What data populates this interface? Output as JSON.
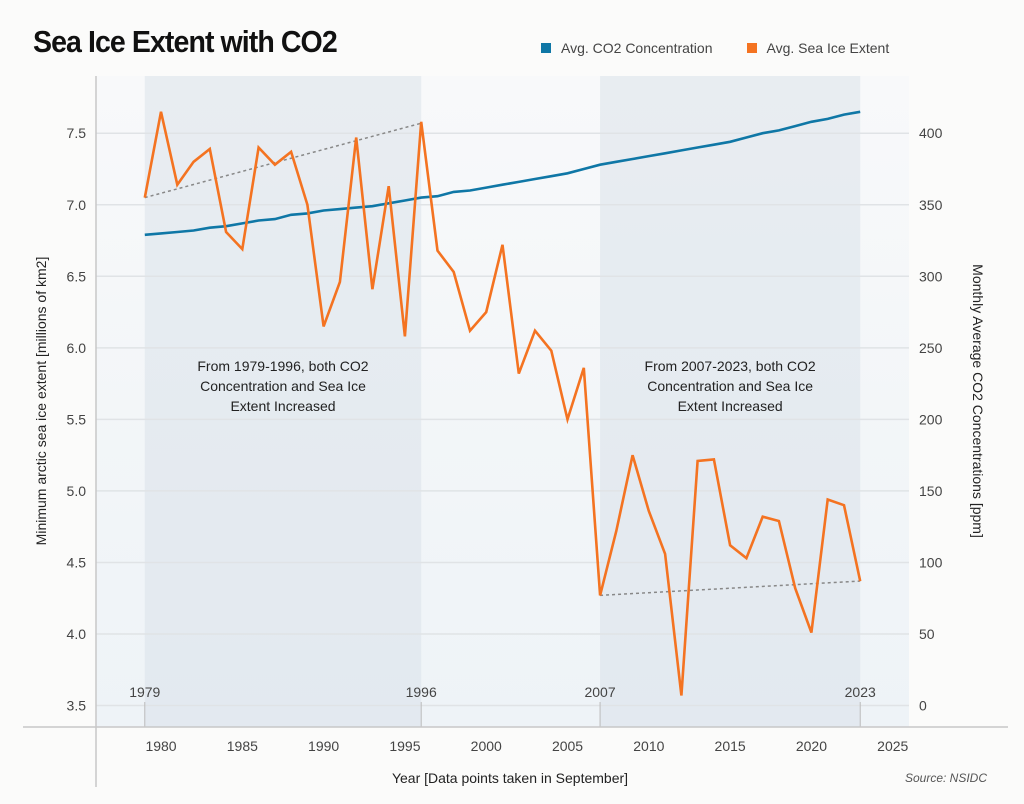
{
  "chart_data": {
    "type": "line",
    "title": "Sea Ice Extent with CO2",
    "xlabel": "Year [Data points taken in September]",
    "ylabel_left": "Minimum arctic sea ice extent [millions of km2]",
    "ylabel_right": "Monthly Average CO2 Concentrations [ppm]",
    "source": "Source: NSIDC",
    "xlim": [
      1976,
      2026
    ],
    "ylim_left": [
      3.35,
      7.9
    ],
    "ylim_right": [
      -15,
      440
    ],
    "x_ticks": [
      1980,
      1985,
      1990,
      1995,
      2000,
      2005,
      2010,
      2015,
      2020,
      2025
    ],
    "y_left_ticks": [
      3.5,
      4.0,
      4.5,
      5.0,
      5.5,
      6.0,
      6.5,
      7.0,
      7.5
    ],
    "y_left_tick_labels": [
      "3.5",
      "4.0",
      "4.5",
      "5.0",
      "5.5",
      "6.0",
      "6.5",
      "7.0",
      "7.5"
    ],
    "y_right_ticks": [
      0,
      50,
      100,
      150,
      200,
      250,
      300,
      350,
      400
    ],
    "grid": true,
    "legend_placement": "top-right",
    "x": [
      1979,
      1980,
      1981,
      1982,
      1983,
      1984,
      1985,
      1986,
      1987,
      1988,
      1989,
      1990,
      1991,
      1992,
      1993,
      1994,
      1995,
      1996,
      1997,
      1998,
      1999,
      2000,
      2001,
      2002,
      2003,
      2004,
      2005,
      2006,
      2007,
      2008,
      2009,
      2010,
      2011,
      2012,
      2013,
      2014,
      2015,
      2016,
      2017,
      2018,
      2019,
      2020,
      2021,
      2022,
      2023
    ],
    "series": [
      {
        "name": "Avg. CO2 Concentration",
        "axis": "right",
        "color": "#0f77a6",
        "values": [
          329,
          330,
          331,
          332,
          334,
          335,
          337,
          339,
          340,
          343,
          344,
          346,
          347,
          348,
          349,
          351,
          353,
          355,
          356,
          359,
          360,
          362,
          364,
          366,
          368,
          370,
          372,
          375,
          378,
          380,
          382,
          384,
          386,
          388,
          390,
          392,
          394,
          397,
          400,
          402,
          405,
          408,
          410,
          413,
          415
        ]
      },
      {
        "name": "Avg. Sea Ice Extent",
        "axis": "left",
        "color": "#f47321",
        "values": [
          7.05,
          7.65,
          7.14,
          7.3,
          7.39,
          6.81,
          6.69,
          7.4,
          7.28,
          7.37,
          7.0,
          6.15,
          6.46,
          7.47,
          6.41,
          7.13,
          6.08,
          7.58,
          6.68,
          6.53,
          6.12,
          6.25,
          6.72,
          5.82,
          6.12,
          5.98,
          5.5,
          5.86,
          4.27,
          4.72,
          5.25,
          4.86,
          4.56,
          3.57,
          5.21,
          5.22,
          4.62,
          4.53,
          4.82,
          4.79,
          4.32,
          4.01,
          4.94,
          4.9,
          4.37
        ]
      }
    ],
    "trend_lines": [
      {
        "from": [
          1979,
          7.05
        ],
        "to": [
          1996,
          7.57
        ]
      },
      {
        "from": [
          2007,
          4.27
        ],
        "to": [
          2023,
          4.37
        ]
      }
    ],
    "highlight_periods": [
      {
        "start": 1979,
        "end": 1996,
        "start_label": "1979",
        "end_label": "1996",
        "annotation": [
          "From 1979-1996, both CO2",
          "Concentration and Sea Ice",
          "Extent Increased"
        ]
      },
      {
        "start": 2007,
        "end": 2023,
        "start_label": "2007",
        "end_label": "2023",
        "annotation": [
          "From 2007-2023, both CO2",
          "Concentration and Sea Ice",
          "Extent Increased"
        ]
      }
    ]
  }
}
